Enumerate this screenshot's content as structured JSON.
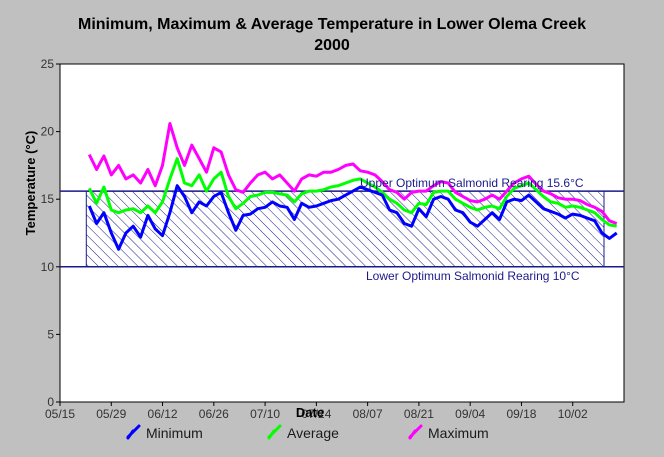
{
  "chart_data": {
    "type": "line",
    "title": "Minimum, Maximum & Average Temperature in Lower Olema Creek 2000",
    "xlabel": "Date",
    "ylabel": "Temperature (°C)",
    "x_tick_labels": [
      "05/15",
      "05/29",
      "06/12",
      "06/26",
      "07/10",
      "07/24",
      "08/07",
      "08/21",
      "09/04",
      "09/18",
      "10/02"
    ],
    "y_tick_labels": [
      "0",
      "5",
      "10",
      "15",
      "20",
      "25"
    ],
    "ylim": [
      0,
      25
    ],
    "xlim": [
      "2000-05-15",
      "2000-10-16"
    ],
    "reference_band": {
      "lower": 10,
      "upper": 15.6,
      "upper_label": "Upper Optimum Salmonid Rearing 15.6°C",
      "lower_label": "Lower Optimum Salmonid Rearing 10°C",
      "fill": "hatched"
    },
    "x": [
      "2000-05-23",
      "2000-05-25",
      "2000-05-27",
      "2000-05-29",
      "2000-05-31",
      "2000-06-02",
      "2000-06-04",
      "2000-06-06",
      "2000-06-08",
      "2000-06-10",
      "2000-06-12",
      "2000-06-14",
      "2000-06-16",
      "2000-06-18",
      "2000-06-20",
      "2000-06-22",
      "2000-06-24",
      "2000-06-26",
      "2000-06-28",
      "2000-06-30",
      "2000-07-02",
      "2000-07-04",
      "2000-07-06",
      "2000-07-08",
      "2000-07-10",
      "2000-07-12",
      "2000-07-14",
      "2000-07-16",
      "2000-07-18",
      "2000-07-20",
      "2000-07-22",
      "2000-07-24",
      "2000-07-26",
      "2000-07-28",
      "2000-07-30",
      "2000-08-01",
      "2000-08-03",
      "2000-08-05",
      "2000-08-07",
      "2000-08-09",
      "2000-08-11",
      "2000-08-13",
      "2000-08-15",
      "2000-08-17",
      "2000-08-19",
      "2000-08-21",
      "2000-08-23",
      "2000-08-25",
      "2000-08-27",
      "2000-08-29",
      "2000-08-31",
      "2000-09-02",
      "2000-09-04",
      "2000-09-06",
      "2000-09-08",
      "2000-09-10",
      "2000-09-12",
      "2000-09-14",
      "2000-09-16",
      "2000-09-18",
      "2000-09-20",
      "2000-09-22",
      "2000-09-24",
      "2000-09-26",
      "2000-09-28",
      "2000-09-30",
      "2000-10-02",
      "2000-10-04",
      "2000-10-06",
      "2000-10-08",
      "2000-10-10",
      "2000-10-12",
      "2000-10-14"
    ],
    "series": [
      {
        "name": "Minimum",
        "color": "#0000ff",
        "values": [
          14.5,
          13.2,
          14.0,
          12.5,
          11.3,
          12.5,
          13.0,
          12.2,
          13.8,
          12.8,
          12.3,
          14.0,
          16.0,
          15.2,
          14.0,
          14.8,
          14.5,
          15.2,
          15.5,
          14.0,
          12.7,
          13.8,
          13.9,
          14.3,
          14.4,
          14.8,
          14.5,
          14.4,
          13.5,
          14.7,
          14.4,
          14.5,
          14.7,
          14.9,
          15.0,
          15.3,
          15.6,
          15.9,
          15.7,
          15.5,
          15.3,
          14.2,
          14.0,
          13.2,
          13.0,
          14.3,
          13.7,
          15.0,
          15.2,
          15.0,
          14.2,
          14.0,
          13.3,
          13.0,
          13.5,
          14.0,
          13.5,
          14.8,
          15.0,
          14.9,
          15.3,
          14.8,
          14.3,
          14.1,
          13.9,
          13.6,
          13.9,
          13.8,
          13.6,
          13.4,
          12.5,
          12.1,
          12.5
        ]
      },
      {
        "name": "Average",
        "color": "#00ff00",
        "values": [
          15.8,
          14.7,
          15.9,
          14.2,
          14.0,
          14.2,
          14.3,
          14.0,
          14.5,
          14.0,
          14.8,
          16.5,
          18.0,
          16.2,
          16.0,
          16.8,
          15.6,
          16.5,
          17.0,
          15.2,
          14.3,
          14.7,
          15.2,
          15.3,
          15.5,
          15.5,
          15.4,
          15.3,
          14.8,
          15.4,
          15.6,
          15.6,
          15.7,
          15.9,
          16.0,
          16.2,
          16.4,
          16.5,
          16.2,
          15.9,
          15.5,
          15.0,
          14.7,
          14.2,
          14.0,
          14.7,
          14.6,
          15.5,
          15.6,
          15.6,
          15.0,
          14.7,
          14.4,
          14.2,
          14.4,
          14.5,
          14.3,
          15.2,
          15.8,
          16.0,
          16.2,
          15.7,
          15.2,
          14.8,
          14.7,
          14.4,
          14.5,
          14.4,
          14.2,
          14.0,
          13.5,
          13.1,
          13.0
        ]
      },
      {
        "name": "Maximum",
        "color": "#ff00ff",
        "values": [
          18.3,
          17.2,
          18.2,
          16.8,
          17.5,
          16.5,
          16.8,
          16.2,
          17.2,
          16.0,
          17.5,
          20.6,
          18.8,
          17.5,
          19.0,
          18.0,
          17.0,
          18.8,
          18.5,
          16.8,
          15.7,
          15.5,
          16.2,
          16.8,
          17.0,
          16.5,
          16.8,
          16.2,
          15.6,
          16.5,
          16.8,
          16.7,
          17.0,
          17.0,
          17.2,
          17.5,
          17.6,
          17.1,
          17.0,
          16.8,
          16.3,
          15.7,
          15.5,
          15.0,
          15.5,
          15.6,
          15.6,
          16.0,
          16.3,
          16.2,
          15.5,
          15.2,
          14.9,
          14.8,
          15.0,
          15.3,
          15.0,
          15.6,
          16.2,
          16.5,
          16.7,
          16.1,
          15.6,
          15.4,
          15.1,
          15.0,
          15.0,
          14.9,
          14.6,
          14.4,
          14.1,
          13.4,
          13.2
        ]
      }
    ],
    "grid": false,
    "legend_position": "bottom",
    "colors": {
      "background": "#c0c0c0",
      "plot_background": "#ffffff",
      "band": "#1a1a8c"
    }
  }
}
